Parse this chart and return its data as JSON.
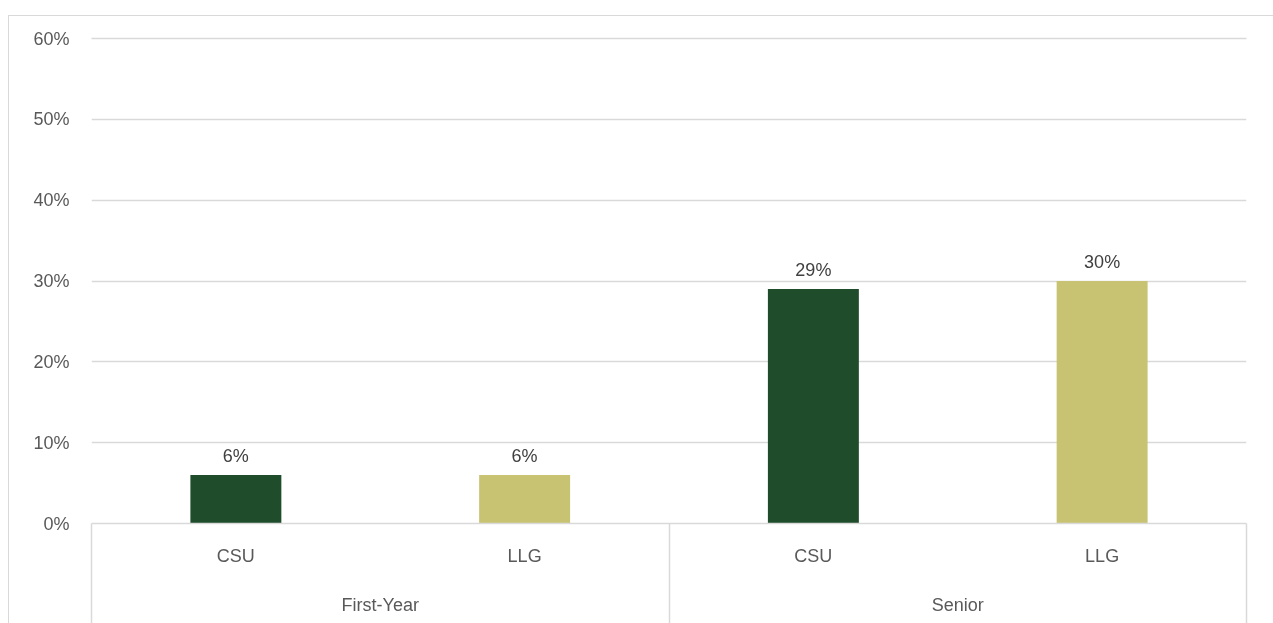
{
  "chart_data": {
    "type": "bar",
    "categories": [
      "CSU",
      "LLG",
      "CSU",
      "LLG"
    ],
    "values": [
      6,
      6,
      29,
      30
    ],
    "colors": [
      "#1f4d2b",
      "#c8c373",
      "#1f4d2b",
      "#c8c373"
    ],
    "value_labels": [
      "6%",
      "6%",
      "29%",
      "30%"
    ],
    "ylim": [
      0,
      60
    ],
    "yticks": [
      {
        "value": 0,
        "label": "0%"
      },
      {
        "value": 10,
        "label": "10%"
      },
      {
        "value": 20,
        "label": "20%"
      },
      {
        "value": 30,
        "label": "30%"
      },
      {
        "value": 40,
        "label": "40%"
      },
      {
        "value": 50,
        "label": "50%"
      },
      {
        "value": 60,
        "label": "60%"
      }
    ],
    "grid": "y",
    "annotations": [
      "First-Year",
      "Senior"
    ]
  }
}
